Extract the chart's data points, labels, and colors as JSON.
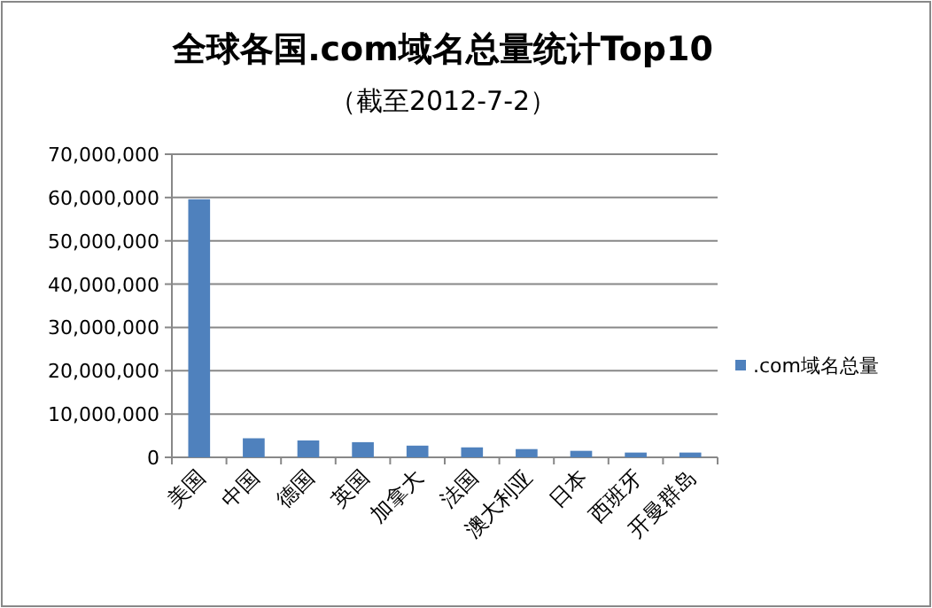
{
  "chart_data": {
    "type": "bar",
    "title": "全球各国.com域名总量统计Top10",
    "subtitle": "（截至2012-7-2）",
    "categories": [
      "美国",
      "中国",
      "德国",
      "英国",
      "加拿大",
      "法国",
      "澳大利亚",
      "日本",
      "西班牙",
      "开曼群岛"
    ],
    "series": [
      {
        "name": ".com域名总量",
        "color": "#4f81bd",
        "values": [
          59600000,
          4400000,
          3900000,
          3500000,
          2700000,
          2300000,
          1900000,
          1500000,
          1100000,
          1100000
        ]
      }
    ],
    "ylim": [
      0,
      70000000
    ],
    "yticks": [
      {
        "value": 0,
        "label": "0"
      },
      {
        "value": 10000000,
        "label": "10,000,000"
      },
      {
        "value": 20000000,
        "label": "20,000,000"
      },
      {
        "value": 30000000,
        "label": "30,000,000"
      },
      {
        "value": 40000000,
        "label": "40,000,000"
      },
      {
        "value": 50000000,
        "label": "50,000,000"
      },
      {
        "value": 60000000,
        "label": "60,000,000"
      },
      {
        "value": 70000000,
        "label": "70,000,000"
      }
    ],
    "grid": "y",
    "legend": "right"
  }
}
